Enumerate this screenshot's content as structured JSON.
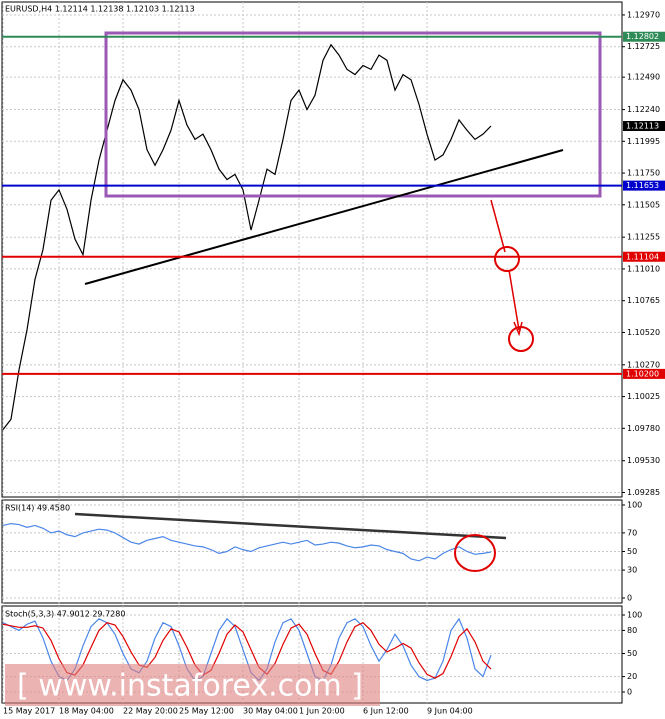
{
  "chart_data": {
    "type": "line",
    "title": "EURUSD,H4  1.12114 1.12138 1.12103 1.12113",
    "watermark": "[  www.instaforex.com  ]",
    "categories": [
      "15 May 2017",
      null,
      null,
      null,
      null,
      null,
      null,
      "18 May 04:00",
      null,
      null,
      null,
      null,
      null,
      null,
      null,
      "22 May 20:00",
      null,
      null,
      null,
      null,
      null,
      null,
      "25 May 12:00",
      null,
      null,
      null,
      null,
      null,
      null,
      null,
      "30 May 04:00",
      null,
      null,
      null,
      null,
      null,
      null,
      "1 Jun 20:00",
      null,
      null,
      null,
      null,
      null,
      null,
      null,
      "6 Jun 12:00",
      null,
      null,
      null,
      null,
      null,
      null,
      null,
      "9 Jun 04:00",
      null,
      null,
      null,
      null,
      null,
      null,
      null,
      null
    ],
    "series": [
      {
        "color": "#000000",
        "values": [
          1.0977,
          1.0985,
          1.1023,
          1.1054,
          1.1093,
          1.1116,
          1.1154,
          1.1162,
          1.1147,
          1.1124,
          1.1112,
          1.1154,
          1.1185,
          1.1208,
          1.1231,
          1.1247,
          1.1239,
          1.1224,
          1.1193,
          1.1181,
          1.1193,
          1.1208,
          1.1231,
          1.1212,
          1.1201,
          1.1205,
          1.1193,
          1.1178,
          1.117,
          1.1174,
          1.1162,
          1.1131,
          1.1154,
          1.1178,
          1.1174,
          1.1201,
          1.1231,
          1.1239,
          1.1224,
          1.1235,
          1.1262,
          1.1274,
          1.1266,
          1.1255,
          1.1251,
          1.1258,
          1.1255,
          1.1266,
          1.1262,
          1.1239,
          1.1251,
          1.1247,
          1.1228,
          1.1205,
          1.1185,
          1.1189,
          1.1201,
          1.1216,
          1.1208,
          1.1201,
          1.1205,
          1.12113
        ]
      }
    ],
    "ylim": [
      1.0925,
      1.1307
    ],
    "yticks": [
      {
        "value": 1.1297,
        "label": "1.12970"
      },
      1.12725,
      {
        "value": 1.1249,
        "label": "1.12490"
      },
      {
        "value": 1.1224,
        "label": "1.12240"
      },
      1.11995,
      {
        "value": 1.1175,
        "label": "1.11750"
      },
      1.11505,
      1.11255,
      {
        "value": 1.1101,
        "label": "1.11010"
      },
      1.10765,
      {
        "value": 1.1052,
        "label": "1.10520"
      },
      {
        "value": 1.1027,
        "label": "1.10270"
      },
      1.10025,
      {
        "value": 1.0978,
        "label": "1.09780"
      },
      {
        "value": 1.0953,
        "label": "1.09530"
      },
      1.09285
    ],
    "grid": true,
    "levels": [
      {
        "value": 1.12802,
        "label": "1.12802",
        "color": "#2e8b57"
      },
      {
        "value": 1.11653,
        "label": "1.11653",
        "color": "#0000cc"
      },
      {
        "value": 1.11104,
        "label": "1.11104",
        "color": "#e00000"
      },
      {
        "value": 1.102,
        "label": "1.10200",
        "color": "#e00000"
      }
    ],
    "current_price": {
      "value": 1.12113,
      "label": "1.12113",
      "color": "#000000"
    },
    "rsi": {
      "title": "RSI(14) 49.4580",
      "color": "#4a86e8",
      "ylim": [
        0,
        100
      ],
      "yticks": [
        100,
        70,
        50,
        30,
        0
      ],
      "values": [
        78,
        80,
        79,
        76,
        78,
        75,
        70,
        72,
        68,
        66,
        70,
        72,
        74,
        73,
        70,
        65,
        60,
        58,
        62,
        64,
        66,
        62,
        60,
        58,
        56,
        55,
        52,
        48,
        50,
        55,
        52,
        50,
        54,
        56,
        58,
        60,
        58,
        60,
        62,
        57,
        58,
        60,
        59,
        56,
        54,
        55,
        57,
        56,
        52,
        50,
        48,
        42,
        40,
        44,
        42,
        48,
        52,
        55,
        50,
        47,
        48,
        49.458
      ]
    },
    "stoch": {
      "title": "Stoch(5,3,3) 47.9012 29.7280",
      "ylim": [
        0,
        100
      ],
      "yticks": [
        100,
        80,
        50,
        20,
        0
      ],
      "series": [
        {
          "color": "#4a86e8",
          "values": [
            90,
            85,
            80,
            88,
            92,
            70,
            40,
            20,
            15,
            30,
            60,
            85,
            95,
            90,
            75,
            50,
            30,
            25,
            40,
            70,
            90,
            85,
            60,
            30,
            15,
            20,
            50,
            80,
            95,
            85,
            55,
            25,
            15,
            30,
            65,
            90,
            95,
            80,
            50,
            20,
            15,
            35,
            70,
            90,
            95,
            85,
            60,
            40,
            55,
            75,
            60,
            35,
            20,
            15,
            18,
            40,
            80,
            95,
            70,
            30,
            20,
            47.9012
          ]
        },
        {
          "color": "#e00000",
          "values": [
            88,
            86,
            84,
            84,
            86,
            83,
            67,
            43,
            25,
            22,
            35,
            58,
            80,
            90,
            87,
            72,
            52,
            35,
            32,
            45,
            67,
            82,
            78,
            58,
            35,
            22,
            28,
            50,
            75,
            87,
            78,
            55,
            32,
            23,
            37,
            62,
            83,
            88,
            75,
            50,
            28,
            23,
            40,
            65,
            85,
            90,
            80,
            62,
            52,
            57,
            63,
            57,
            38,
            23,
            18,
            24,
            46,
            72,
            82,
            65,
            40,
            29.728
          ]
        }
      ]
    }
  }
}
